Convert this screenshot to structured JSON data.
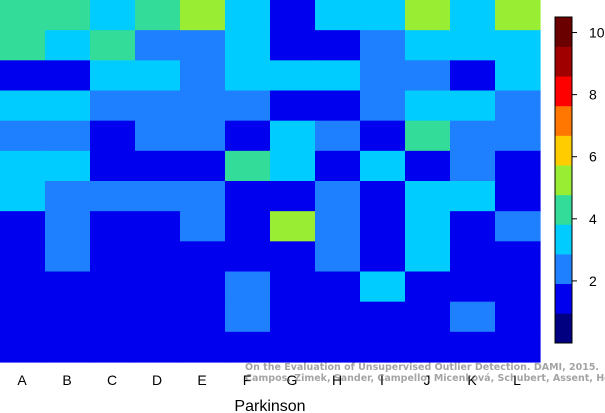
{
  "chart_data": {
    "type": "heatmap",
    "xlabel": "Parkinson",
    "ylabel": "",
    "title": "",
    "columns": [
      "A",
      "B",
      "C",
      "D",
      "E",
      "F",
      "G",
      "H",
      "I",
      "J",
      "K",
      "L"
    ],
    "colorbar": {
      "range": [
        0,
        10.5
      ],
      "ticks": [
        2,
        4,
        6,
        8,
        10
      ],
      "colors": [
        "#000080",
        "#0000ee",
        "#1e7fff",
        "#00ccff",
        "#33dd99",
        "#99ee33",
        "#ffcc00",
        "#ff7700",
        "#ff0000",
        "#a00000",
        "#6b0000"
      ]
    },
    "values": [
      [
        4,
        4,
        3,
        4,
        5,
        3,
        1,
        3,
        3,
        5,
        3,
        5
      ],
      [
        4,
        3,
        4,
        2,
        2,
        3,
        1,
        1,
        2,
        3,
        3,
        3
      ],
      [
        1,
        1,
        3,
        3,
        2,
        3,
        3,
        3,
        2,
        2,
        1,
        3
      ],
      [
        3,
        3,
        2,
        2,
        2,
        2,
        1,
        1,
        2,
        3,
        3,
        2
      ],
      [
        2,
        2,
        1,
        2,
        2,
        1,
        3,
        2,
        1,
        4,
        2,
        2
      ],
      [
        3,
        3,
        1,
        1,
        1,
        4,
        3,
        1,
        3,
        1,
        2,
        1
      ],
      [
        3,
        2,
        2,
        2,
        2,
        1,
        1,
        2,
        1,
        3,
        3,
        1
      ],
      [
        1,
        2,
        1,
        1,
        2,
        1,
        5,
        2,
        1,
        3,
        1,
        2
      ],
      [
        1,
        2,
        1,
        1,
        1,
        1,
        1,
        2,
        1,
        3,
        1,
        1
      ],
      [
        1,
        1,
        1,
        1,
        1,
        2,
        1,
        1,
        3,
        1,
        1,
        1
      ],
      [
        1,
        1,
        1,
        1,
        1,
        2,
        1,
        1,
        1,
        1,
        2,
        1
      ],
      [
        1,
        1,
        1,
        1,
        1,
        1,
        1,
        1,
        1,
        1,
        1,
        1
      ]
    ]
  },
  "credit": {
    "line1": "On the Evaluation of Unsupervised Outlier Detection. DAMI, 2015.",
    "line2": "Campos, Zimek, Sander, Campello, Micenková, Schubert, Assent, Houle"
  }
}
